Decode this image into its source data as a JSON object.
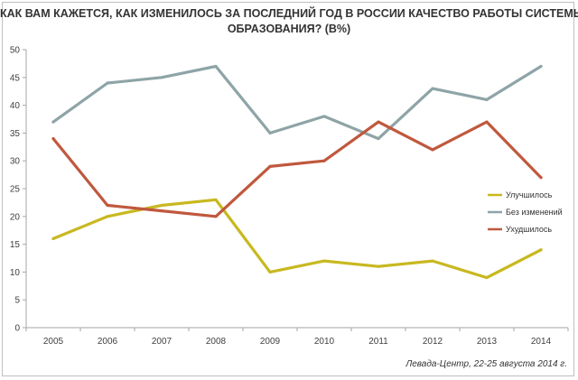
{
  "chart_data": {
    "type": "line",
    "title_lines": [
      "КАК ВАМ КАЖЕТСЯ, КАК ИЗМЕНИЛОСЬ ЗА ПОСЛЕДНИЙ ГОД В РОССИИ КАЧЕСТВО РАБОТЫ СИСТЕМЫ",
      "ОБРАЗОВАНИЯ? (В%)"
    ],
    "x": [
      2005,
      2006,
      2007,
      2008,
      2009,
      2010,
      2011,
      2012,
      2013,
      2014
    ],
    "x_tick_labels": [
      "2005",
      "2006",
      "2007",
      "2008",
      "2009",
      "2010",
      "2011",
      "2012",
      "2013",
      "2014"
    ],
    "ylim": [
      0,
      50
    ],
    "y_ticks": [
      0,
      5,
      10,
      15,
      20,
      25,
      30,
      35,
      40,
      45,
      50
    ],
    "y_tick_labels": [
      "0",
      "5",
      "10",
      "15",
      "20",
      "25",
      "30",
      "35",
      "40",
      "45",
      "50"
    ],
    "grid": false,
    "legend_position": "right",
    "series": [
      {
        "name": "Улучшилось",
        "color": "#c8b81f",
        "values": [
          16,
          20,
          22,
          23,
          10,
          12,
          11,
          12,
          9,
          14
        ]
      },
      {
        "name": "Без изменений",
        "color": "#8ea4a7",
        "values": [
          37,
          44,
          45,
          47,
          35,
          38,
          34,
          43,
          41,
          47
        ]
      },
      {
        "name": "Ухудшилось",
        "color": "#c0583d",
        "values": [
          34,
          22,
          21,
          20,
          29,
          30,
          37,
          32,
          37,
          27
        ]
      }
    ],
    "source": "Левада-Центр, 22-25 августа 2014 г."
  }
}
